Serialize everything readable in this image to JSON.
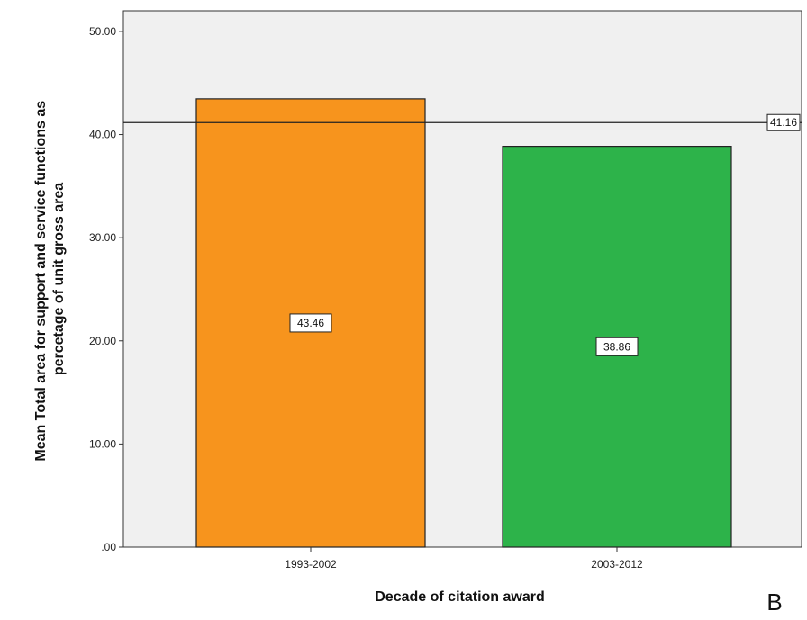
{
  "chart_data": {
    "type": "bar",
    "categories": [
      "1993-2002",
      "2003-2012"
    ],
    "values": [
      43.46,
      38.86
    ],
    "value_labels": [
      "43.46",
      "38.86"
    ],
    "reference_line": {
      "value": 41.16,
      "label": "41.16"
    },
    "xlabel": "Decade of citation award",
    "ylabel_lines": [
      "Mean Total area for support and service functions as",
      "percetage of unit gross area"
    ],
    "ylim": [
      0,
      52
    ],
    "y_ticks": [
      0,
      10,
      20,
      30,
      40,
      50
    ],
    "y_tick_labels": [
      ".00",
      "10.00",
      "20.00",
      "30.00",
      "40.00",
      "50.00"
    ],
    "grid": false,
    "colors": {
      "bars": [
        "#f7941d",
        "#2db34a"
      ],
      "plot_background": "#f0f0f0"
    },
    "panel_label": "B"
  }
}
